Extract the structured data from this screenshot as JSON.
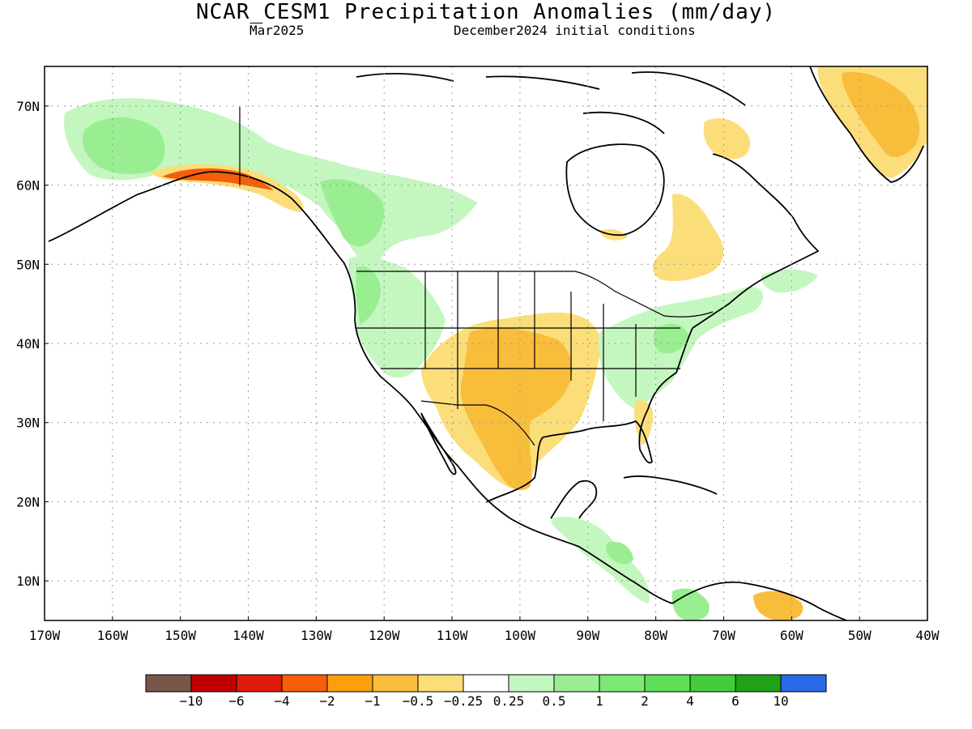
{
  "header": {
    "title": "NCAR_CESM1 Precipitation Anomalies (mm/day)",
    "valid_month": "Mar2025",
    "initial_conditions": "December2024 initial conditions"
  },
  "map": {
    "lon_range": [
      -170,
      -40
    ],
    "lat_range": [
      5,
      75
    ],
    "lon_tick_labels": [
      "170W",
      "160W",
      "150W",
      "140W",
      "130W",
      "120W",
      "110W",
      "100W",
      "90W",
      "80W",
      "70W",
      "60W",
      "50W",
      "40W"
    ],
    "lat_tick_labels": [
      "10N",
      "20N",
      "30N",
      "40N",
      "50N",
      "60N",
      "70N"
    ],
    "grid": "dotted"
  },
  "colorbar": {
    "colors": [
      "#7a5548",
      "#c00000",
      "#e01b0b",
      "#f55e0a",
      "#fb9f0d",
      "#f9bd3c",
      "#fbde7a",
      "#ffffff",
      "#c4f7c0",
      "#99ee91",
      "#7ce875",
      "#5fdf57",
      "#44cc3c",
      "#21a01a",
      "#2a6ae6"
    ],
    "labels": [
      "−10",
      "−6",
      "−4",
      "−2",
      "−1",
      "−0.5",
      "−0.25",
      "0.25",
      "0.5",
      "1",
      "2",
      "4",
      "6",
      "10"
    ]
  },
  "chart_data": {
    "type": "heatmap",
    "title": "NCAR_CESM1 Precipitation Anomalies (mm/day)",
    "regions": [
      {
        "area": "Alaska interior and Yukon",
        "anomaly_mm_day": "0.25 to 1"
      },
      {
        "area": "Southern Alaska coast",
        "anomaly_mm_day": "-2 to -0.5"
      },
      {
        "area": "Western Canada and US Northwest",
        "anomaly_mm_day": "0.25 to 1"
      },
      {
        "area": "Southern Plains, Texas and northern Mexico",
        "anomaly_mm_day": "-1 to -0.25"
      },
      {
        "area": "Ohio Valley and Mid-Atlantic",
        "anomaly_mm_day": "0.25 to 1"
      },
      {
        "area": "Quebec and Labrador",
        "anomaly_mm_day": "-1 to -0.25"
      },
      {
        "area": "Southern Greenland",
        "anomaly_mm_day": "-2 to -0.25"
      },
      {
        "area": "Central America and northern Colombia",
        "anomaly_mm_day": "0.25 to 2"
      },
      {
        "area": "Venezuela coast",
        "anomaly_mm_day": "-1 to -0.25"
      }
    ]
  }
}
